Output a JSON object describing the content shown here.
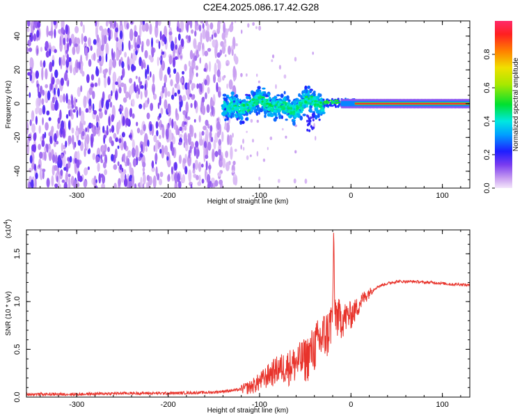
{
  "title": "C2E4.2025.086.17.42.G28",
  "chart_data": [
    {
      "type": "heatmap",
      "name": "spectrogram",
      "xlabel": "Height of straight line (km)",
      "ylabel": "Frequency (Hz)",
      "xlim": [
        -355,
        130
      ],
      "ylim": [
        -50,
        49
      ],
      "xticks": [
        -300,
        -200,
        -100,
        0,
        100
      ],
      "yticks": [
        -40,
        -20,
        0,
        20,
        40
      ],
      "colorbar": {
        "label": "Normalized spectral amplitude",
        "range": [
          0,
          1
        ],
        "ticks": [
          "0.0",
          "0.2",
          "0.4",
          "0.6",
          "0.8"
        ],
        "tick_values": [
          0.0,
          0.2,
          0.4,
          0.6,
          0.8
        ]
      },
      "features": {
        "noise_region_km": [
          -355,
          -140
        ],
        "scattered_region_km": [
          -140,
          -30
        ],
        "transition_region_km": [
          -30,
          5
        ],
        "steady_line_km": [
          5,
          130
        ],
        "steady_line_frequency_hz": 0
      }
    },
    {
      "type": "line",
      "name": "snr",
      "xlabel": "Height of straight line (km)",
      "ylabel": "SNR (10 * v/v)",
      "multiplier": "(x10",
      "multiplier_exp": "4",
      "xlim": [
        -355,
        130
      ],
      "ylim": [
        0,
        1.75
      ],
      "xticks": [
        -300,
        -200,
        -100,
        0,
        100
      ],
      "yticks": [
        "0.0",
        "0.5",
        "1.0",
        "1.5"
      ],
      "ytick_values": [
        0.0,
        0.5,
        1.0,
        1.5
      ],
      "color": "#e8332b",
      "x": [
        -355,
        -300,
        -250,
        -200,
        -150,
        -120,
        -110,
        -100,
        -90,
        -80,
        -70,
        -60,
        -50,
        -45,
        -40,
        -35,
        -30,
        -25,
        -22,
        -20,
        -19,
        -18,
        -15,
        -10,
        -5,
        0,
        5,
        10,
        15,
        20,
        25,
        30,
        40,
        50,
        60,
        70,
        80,
        90,
        100,
        110,
        120,
        130
      ],
      "values": [
        0.03,
        0.03,
        0.04,
        0.04,
        0.05,
        0.08,
        0.1,
        0.15,
        0.22,
        0.28,
        0.3,
        0.33,
        0.38,
        0.42,
        0.5,
        0.55,
        0.6,
        0.65,
        0.75,
        0.85,
        1.72,
        0.9,
        0.82,
        0.8,
        0.82,
        0.85,
        0.9,
        0.98,
        1.04,
        1.09,
        1.13,
        1.16,
        1.19,
        1.21,
        1.21,
        1.21,
        1.2,
        1.2,
        1.19,
        1.18,
        1.18,
        1.17
      ],
      "peak": {
        "x": -19,
        "value": 1.72
      }
    }
  ]
}
